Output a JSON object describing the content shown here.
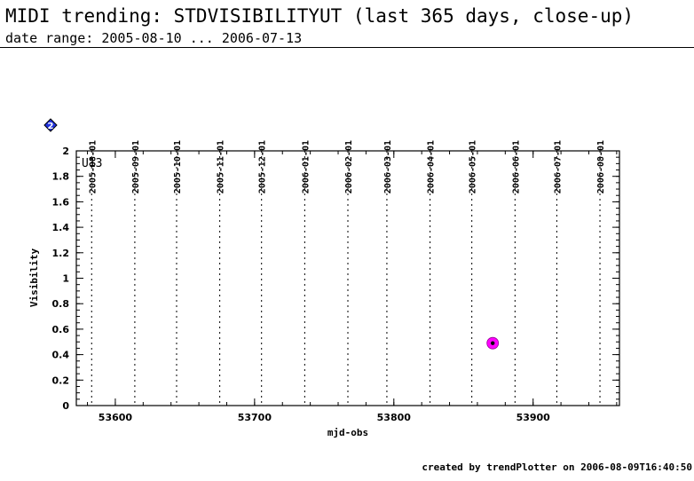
{
  "header": {
    "title": "MIDI trending: STDVISIBILITYUT (last 365 days, close-up)",
    "subtitle": "date range: 2005-08-10 ... 2006-07-13"
  },
  "footer": {
    "text": "created by trendPlotter on 2006-08-09T16:40:50"
  },
  "legend": {
    "marker_label": "2"
  },
  "chart_data": {
    "type": "scatter",
    "title": "MIDI trending: STDVISIBILITYUT (last 365 days, close-up)",
    "xlabel": "mjd-obs",
    "ylabel": "Visibility",
    "xlim": [
      53572,
      53962
    ],
    "ylim": [
      0,
      2
    ],
    "x_ticks": [
      53600,
      53700,
      53800,
      53900
    ],
    "y_ticks": [
      0,
      0.2,
      0.4,
      0.6,
      0.8,
      1,
      1.2,
      1.4,
      1.6,
      1.8,
      2
    ],
    "y_tick_labels": [
      "0",
      "0.2",
      "0.4",
      "0.6",
      "0.8",
      "1",
      "1.2",
      "1.4",
      "1.6",
      "1.8",
      "2"
    ],
    "panel_label": "U13",
    "month_markers": [
      {
        "label": "2005-08-01",
        "mjd": 53583
      },
      {
        "label": "2005-09-01",
        "mjd": 53614
      },
      {
        "label": "2005-10-01",
        "mjd": 53644
      },
      {
        "label": "2005-11-01",
        "mjd": 53675
      },
      {
        "label": "2005-12-01",
        "mjd": 53705
      },
      {
        "label": "2006-01-01",
        "mjd": 53736
      },
      {
        "label": "2006-02-01",
        "mjd": 53767
      },
      {
        "label": "2006-03-01",
        "mjd": 53795
      },
      {
        "label": "2006-04-01",
        "mjd": 53826
      },
      {
        "label": "2006-05-01",
        "mjd": 53856
      },
      {
        "label": "2006-06-01",
        "mjd": 53887
      },
      {
        "label": "2006-07-01",
        "mjd": 53917
      },
      {
        "label": "2006-08-01",
        "mjd": 53948
      }
    ],
    "series": [
      {
        "points": [
          {
            "x": 53871,
            "y": 0.49
          }
        ],
        "color": "#ff00ff",
        "center_color": "#000000"
      }
    ],
    "grid": "vertical dotted lines at month starts"
  }
}
